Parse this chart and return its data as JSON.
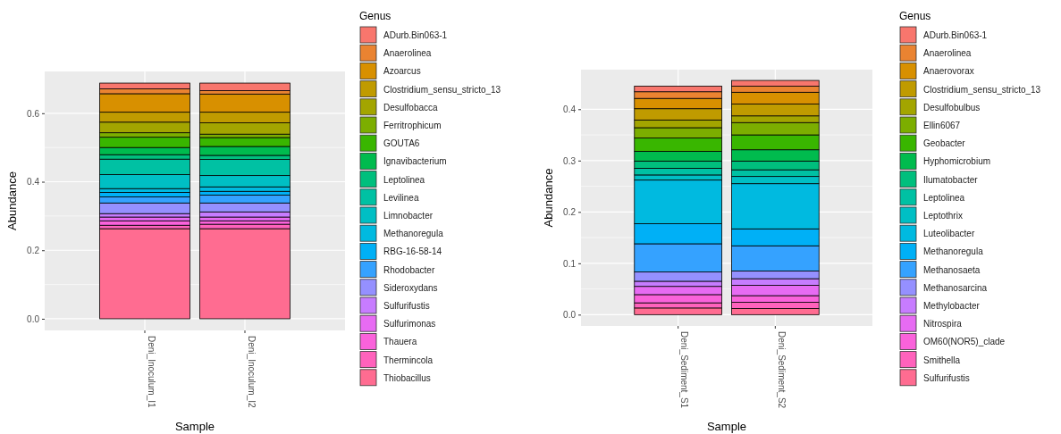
{
  "chart_data": [
    {
      "type": "bar",
      "stacked": true,
      "xlabel": "Sample",
      "ylabel": "Abundance",
      "legend_title": "Genus",
      "legend": "right",
      "grid": true,
      "categories": [
        "Deni_Inoculum_I1",
        "Deni_Inoculum_I2"
      ],
      "ylim": [
        -0.034,
        0.722
      ],
      "yticks": [
        {
          "value": 0,
          "label": "0.0"
        },
        {
          "value": 0.2,
          "label": "0.2"
        },
        {
          "value": 0.4,
          "label": "0.4"
        },
        {
          "value": 0.6,
          "label": "0.6"
        }
      ],
      "series": [
        {
          "name": "Thiobacillus",
          "color": "#ff6c91",
          "values": [
            0.263,
            0.263
          ]
        },
        {
          "name": "Thermincola",
          "color": "#ff62bc",
          "values": [
            0.01,
            0.013
          ]
        },
        {
          "name": "Thauera",
          "color": "#fa62db",
          "values": [
            0.013,
            0.01
          ]
        },
        {
          "name": "Sulfurimonas",
          "color": "#e76bf3",
          "values": [
            0.011,
            0.011
          ]
        },
        {
          "name": "Sulfurifustis",
          "color": "#c77cff",
          "values": [
            0.01,
            0.015
          ]
        },
        {
          "name": "Sideroxydans",
          "color": "#9590ff",
          "values": [
            0.031,
            0.026
          ]
        },
        {
          "name": "Rhodobacter",
          "color": "#35a2ff",
          "values": [
            0.018,
            0.023
          ]
        },
        {
          "name": "RBG-16-58-14",
          "color": "#00b0f6",
          "values": [
            0.013,
            0.011
          ]
        },
        {
          "name": "Methanoregula",
          "color": "#00bae0",
          "values": [
            0.011,
            0.013
          ]
        },
        {
          "name": "Limnobacter",
          "color": "#00bfc4",
          "values": [
            0.041,
            0.033
          ]
        },
        {
          "name": "Levilinea",
          "color": "#00c1a3",
          "values": [
            0.045,
            0.047
          ]
        },
        {
          "name": "Leptolinea",
          "color": "#00bf7d",
          "values": [
            0.013,
            0.012
          ]
        },
        {
          "name": "Ignavibacterium",
          "color": "#00bb4e",
          "values": [
            0.021,
            0.026
          ]
        },
        {
          "name": "GOUTA6",
          "color": "#39b600",
          "values": [
            0.03,
            0.026
          ]
        },
        {
          "name": "Ferritrophicum",
          "color": "#7cae00",
          "values": [
            0.013,
            0.01
          ]
        },
        {
          "name": "Desulfobacca",
          "color": "#a3a500",
          "values": [
            0.031,
            0.033
          ]
        },
        {
          "name": "Clostridium_sensu_stricto_13",
          "color": "#c09b00",
          "values": [
            0.029,
            0.031
          ]
        },
        {
          "name": "Azoarcus",
          "color": "#d89000",
          "values": [
            0.054,
            0.053
          ]
        },
        {
          "name": "Anaerolinea",
          "color": "#ea8331",
          "values": [
            0.014,
            0.01
          ]
        },
        {
          "name": "ADurb.Bin063-1",
          "color": "#f8766d",
          "values": [
            0.017,
            0.022
          ]
        }
      ]
    },
    {
      "type": "bar",
      "stacked": true,
      "xlabel": "Sample",
      "ylabel": "Abundance",
      "legend_title": "Genus",
      "legend": "right",
      "grid": true,
      "categories": [
        "Deni_Sediment_S1",
        "Deni_Sediment_S2"
      ],
      "ylim": [
        -0.022,
        0.477
      ],
      "yticks": [
        {
          "value": 0,
          "label": "0.0"
        },
        {
          "value": 0.1,
          "label": "0.1"
        },
        {
          "value": 0.2,
          "label": "0.2"
        },
        {
          "value": 0.3,
          "label": "0.3"
        },
        {
          "value": 0.4,
          "label": "0.4"
        }
      ],
      "series": [
        {
          "name": "Sulfurifustis",
          "color": "#ff6c91",
          "values": [
            0.013,
            0.012
          ]
        },
        {
          "name": "Smithella",
          "color": "#ff62bc",
          "values": [
            0.01,
            0.012
          ]
        },
        {
          "name": "OM60(NOR5)_clade",
          "color": "#fa62db",
          "values": [
            0.016,
            0.013
          ]
        },
        {
          "name": "Nitrospira",
          "color": "#e76bf3",
          "values": [
            0.016,
            0.02
          ]
        },
        {
          "name": "Methylobacter",
          "color": "#c77cff",
          "values": [
            0.01,
            0.013
          ]
        },
        {
          "name": "Methanosarcina",
          "color": "#9590ff",
          "values": [
            0.018,
            0.015
          ]
        },
        {
          "name": "Methanosaeta",
          "color": "#35a2ff",
          "values": [
            0.055,
            0.049
          ]
        },
        {
          "name": "Methanoregula",
          "color": "#00b0f6",
          "values": [
            0.039,
            0.033
          ]
        },
        {
          "name": "Luteolibacter",
          "color": "#00bae0",
          "values": [
            0.085,
            0.088
          ]
        },
        {
          "name": "Leptothrix",
          "color": "#00bfc4",
          "values": [
            0.01,
            0.014
          ]
        },
        {
          "name": "Leptolinea",
          "color": "#00c1a3",
          "values": [
            0.013,
            0.013
          ]
        },
        {
          "name": "Ilumatobacter",
          "color": "#00bf7d",
          "values": [
            0.014,
            0.017
          ]
        },
        {
          "name": "Hyphomicrobium",
          "color": "#00bb4e",
          "values": [
            0.019,
            0.022
          ]
        },
        {
          "name": "Geobacter",
          "color": "#39b600",
          "values": [
            0.026,
            0.029
          ]
        },
        {
          "name": "Ellin6067",
          "color": "#7cae00",
          "values": [
            0.02,
            0.024
          ]
        },
        {
          "name": "Desulfobulbus",
          "color": "#a3a500",
          "values": [
            0.015,
            0.013
          ]
        },
        {
          "name": "Clostridium_sensu_stricto_13",
          "color": "#c09b00",
          "values": [
            0.022,
            0.023
          ]
        },
        {
          "name": "Anaerovorax",
          "color": "#d89000",
          "values": [
            0.02,
            0.023
          ]
        },
        {
          "name": "Anaerolinea",
          "color": "#ea8331",
          "values": [
            0.013,
            0.012
          ]
        },
        {
          "name": "ADurb.Bin063-1",
          "color": "#f8766d",
          "values": [
            0.011,
            0.011
          ]
        }
      ]
    }
  ]
}
